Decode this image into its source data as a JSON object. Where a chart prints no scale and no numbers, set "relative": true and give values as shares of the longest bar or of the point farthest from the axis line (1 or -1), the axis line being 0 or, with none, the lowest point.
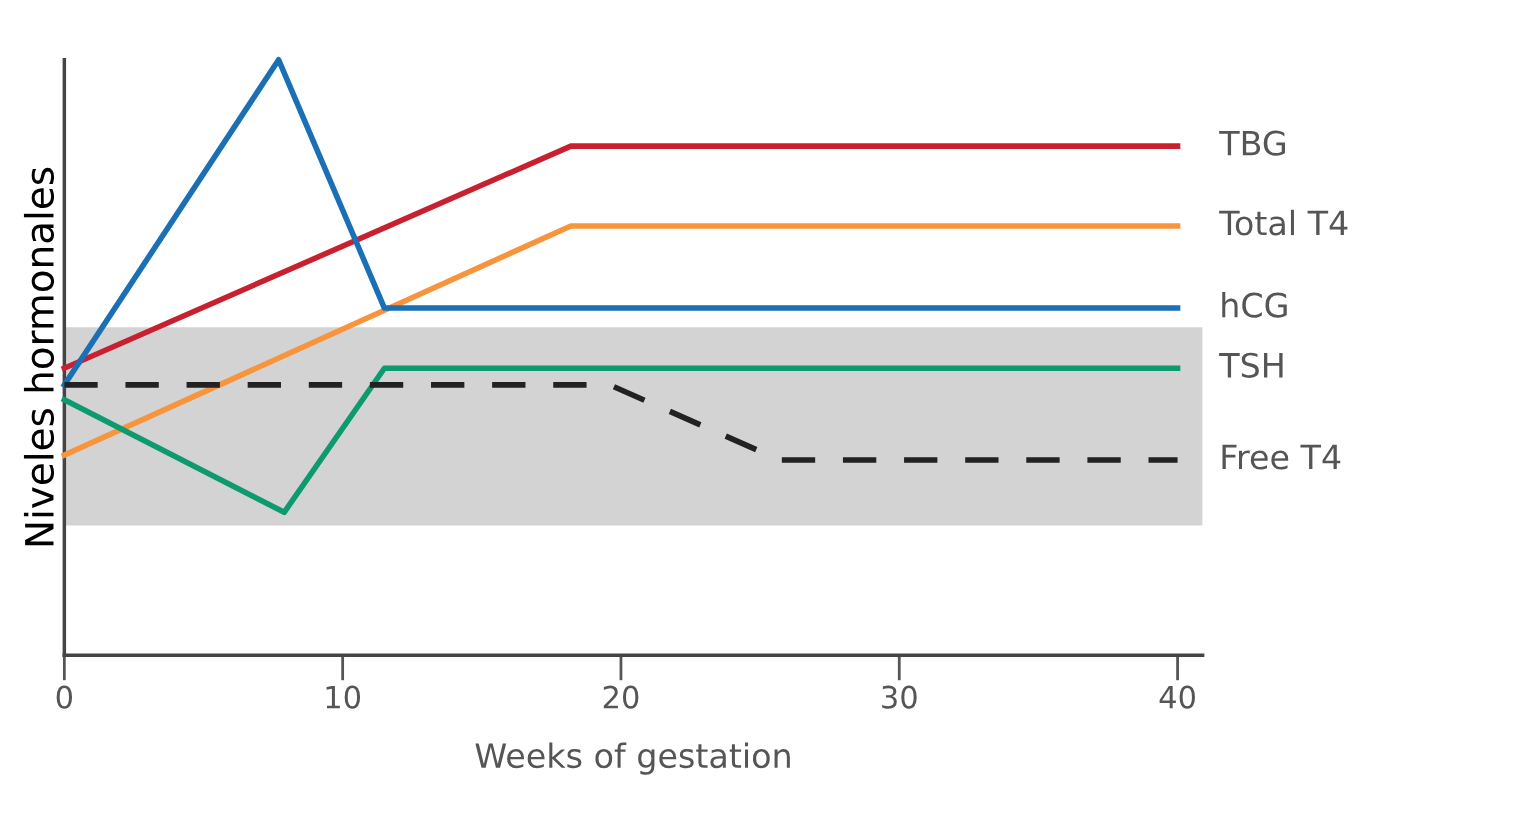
{
  "chart_data": {
    "type": "line",
    "relative": true,
    "xlabel": "Weeks of gestation",
    "ylabel": "Niveles hormonales",
    "xlim": [
      0,
      40.9
    ],
    "xticks": [
      0,
      10,
      20,
      30,
      40
    ],
    "tick_labels": "x",
    "grid": false,
    "legend": false,
    "marker": "none",
    "series": [
      {
        "name": "TBG",
        "color": "#c8202f",
        "x": [
          0,
          18.2,
          40
        ],
        "values": [
          0.482,
          0.855,
          0.855
        ]
      },
      {
        "name": "Total T4",
        "color": "#f7943c",
        "x": [
          0,
          18.2,
          40
        ],
        "values": [
          0.336,
          0.721,
          0.721
        ]
      },
      {
        "name": "hCG",
        "color": "#1a6fb5",
        "x": [
          0,
          7.7,
          11.5,
          40
        ],
        "values": [
          0.454,
          1,
          0.583,
          0.583
        ]
      },
      {
        "name": "TSH",
        "color": "#0c9a6e",
        "x": [
          0,
          7.9,
          11.5,
          40
        ],
        "values": [
          0.429,
          0.24,
          0.482,
          0.482
        ]
      },
      {
        "name": "Free T4",
        "color": "#222222",
        "line_style": "dashed",
        "x": [
          0,
          19.6,
          25.7,
          40
        ],
        "values": [
          0.454,
          0.454,
          0.328,
          0.328
        ]
      }
    ],
    "bands": [
      {
        "axis": "y",
        "from": 0.218,
        "to": 0.551,
        "color": "#d3d3d4"
      }
    ]
  }
}
